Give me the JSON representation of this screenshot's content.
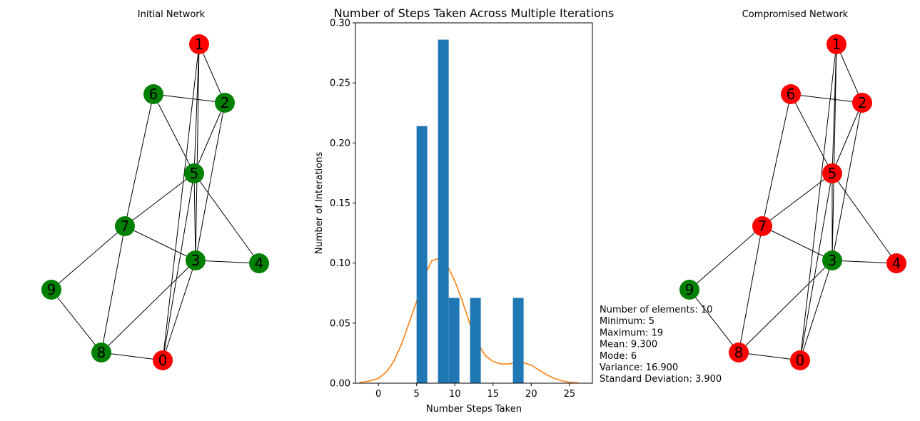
{
  "colors": {
    "red": "#ff0000",
    "green": "#008000",
    "bar": "#1f77b4",
    "kde": "#ff7f0e"
  },
  "networks": [
    {
      "title": "Initial Network",
      "nodes": [
        {
          "id": "0",
          "color": "red"
        },
        {
          "id": "1",
          "color": "red"
        },
        {
          "id": "2",
          "color": "green"
        },
        {
          "id": "3",
          "color": "green"
        },
        {
          "id": "4",
          "color": "green"
        },
        {
          "id": "5",
          "color": "green"
        },
        {
          "id": "6",
          "color": "green"
        },
        {
          "id": "7",
          "color": "green"
        },
        {
          "id": "8",
          "color": "green"
        },
        {
          "id": "9",
          "color": "green"
        }
      ]
    },
    {
      "title": "Compromised Network",
      "nodes": [
        {
          "id": "0",
          "color": "red"
        },
        {
          "id": "1",
          "color": "red"
        },
        {
          "id": "2",
          "color": "red"
        },
        {
          "id": "3",
          "color": "green"
        },
        {
          "id": "4",
          "color": "red"
        },
        {
          "id": "5",
          "color": "red"
        },
        {
          "id": "6",
          "color": "red"
        },
        {
          "id": "7",
          "color": "red"
        },
        {
          "id": "8",
          "color": "red"
        },
        {
          "id": "9",
          "color": "green"
        }
      ]
    }
  ],
  "edges": [
    [
      "1",
      "2"
    ],
    [
      "1",
      "5"
    ],
    [
      "1",
      "3"
    ],
    [
      "1",
      "0"
    ],
    [
      "6",
      "2"
    ],
    [
      "6",
      "5"
    ],
    [
      "6",
      "7"
    ],
    [
      "2",
      "5"
    ],
    [
      "2",
      "3"
    ],
    [
      "5",
      "7"
    ],
    [
      "5",
      "3"
    ],
    [
      "5",
      "4"
    ],
    [
      "5",
      "0"
    ],
    [
      "7",
      "3"
    ],
    [
      "7",
      "9"
    ],
    [
      "7",
      "8"
    ],
    [
      "3",
      "4"
    ],
    [
      "3",
      "8"
    ],
    [
      "3",
      "0"
    ],
    [
      "9",
      "8"
    ],
    [
      "8",
      "0"
    ]
  ],
  "chart_data": {
    "type": "bar",
    "title": "Number of Steps Taken Across Multiple Iterations",
    "xlabel": "Number Steps Taken",
    "ylabel": "Number of Interations",
    "xlim": [
      -3,
      28
    ],
    "ylim": [
      0,
      0.3
    ],
    "xticks": [
      0,
      5,
      10,
      15,
      20,
      25
    ],
    "yticks": [
      0.0,
      0.05,
      0.1,
      0.15,
      0.2,
      0.25,
      0.3
    ],
    "bars": [
      {
        "x0": 5.0,
        "x1": 6.4,
        "value": 0.214
      },
      {
        "x0": 7.8,
        "x1": 9.2,
        "value": 0.286
      },
      {
        "x0": 9.2,
        "x1": 10.6,
        "value": 0.071
      },
      {
        "x0": 12.0,
        "x1": 13.4,
        "value": 0.071
      },
      {
        "x0": 17.6,
        "x1": 19.0,
        "value": 0.071
      }
    ],
    "kde": {
      "x": [
        -2.5,
        -1,
        0,
        1,
        2,
        3,
        4,
        5,
        6,
        7,
        8,
        9,
        10,
        11,
        12,
        13,
        14,
        15,
        16,
        17,
        18,
        19,
        20,
        21,
        22,
        23,
        24,
        25,
        26.2
      ],
      "y": [
        0.0005,
        0.002,
        0.004,
        0.009,
        0.018,
        0.032,
        0.05,
        0.068,
        0.089,
        0.102,
        0.104,
        0.098,
        0.085,
        0.068,
        0.049,
        0.033,
        0.023,
        0.018,
        0.016,
        0.016,
        0.017,
        0.017,
        0.015,
        0.011,
        0.007,
        0.004,
        0.002,
        0.0008,
        0.0002
      ]
    },
    "stats": [
      "Number of elements: 10",
      "Minimum: 5",
      "Maximum: 19",
      "Mean: 9.300",
      "Mode: 6",
      "Variance: 16.900",
      "Standard Deviation: 3.900"
    ]
  }
}
